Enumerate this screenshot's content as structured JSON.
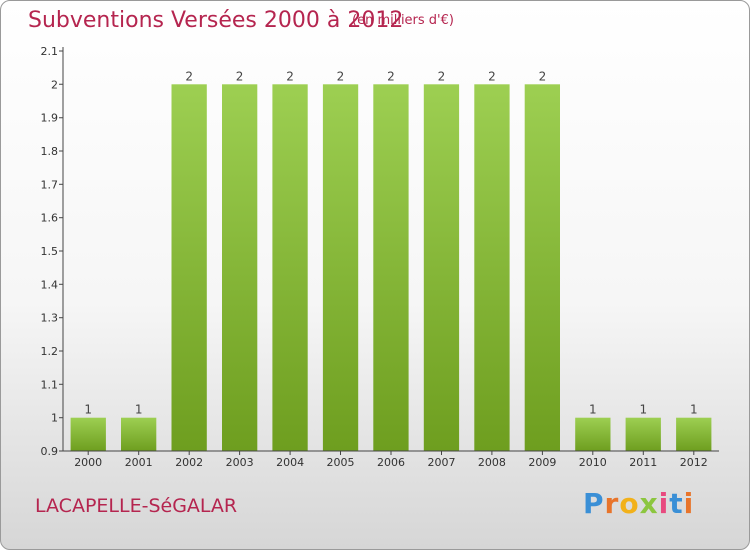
{
  "header": {
    "title": "Subventions Versées 2000 à 2012",
    "unit": "(en milliers d'€)"
  },
  "footer": {
    "town": "LACAPELLE-SéGALAR",
    "brand": "Proxiti"
  },
  "colors": {
    "title": "#b5254f",
    "bar_light": "#9dcf52",
    "bar_dark": "#6e9e1f",
    "axis": "#444444"
  },
  "chart_data": {
    "type": "bar",
    "categories": [
      "2000",
      "2001",
      "2002",
      "2003",
      "2004",
      "2005",
      "2006",
      "2007",
      "2008",
      "2009",
      "2010",
      "2011",
      "2012"
    ],
    "values": [
      1,
      1,
      2,
      2,
      2,
      2,
      2,
      2,
      2,
      2,
      1,
      1,
      1
    ],
    "data_labels": [
      "1",
      "1",
      "2",
      "2",
      "2",
      "2",
      "2",
      "2",
      "2",
      "2",
      "1",
      "1",
      "1"
    ],
    "ylim": [
      0.9,
      2.1
    ],
    "yticks": [
      0.9,
      1,
      1.1,
      1.2,
      1.3,
      1.4,
      1.5,
      1.6,
      1.7,
      1.8,
      1.9,
      2,
      2.1
    ],
    "ytick_labels": [
      "0.9",
      "1",
      "1.1",
      "1.2",
      "1.3",
      "1.4",
      "1.5",
      "1.6",
      "1.7",
      "1.8",
      "1.9",
      "2",
      "2.1"
    ],
    "title": "Subventions Versées 2000 à 2012",
    "xlabel": "",
    "ylabel": "",
    "grid": false,
    "legend": "none"
  }
}
